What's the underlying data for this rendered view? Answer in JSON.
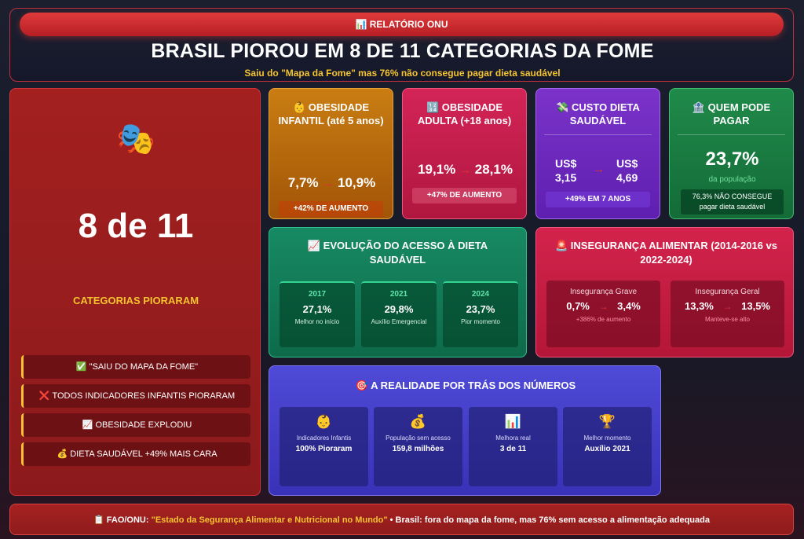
{
  "header": {
    "badge": "📊 RELATÓRIO ONU",
    "title": "BRASIL PIOROU EM 8 DE 11 CATEGORIAS DA FOME",
    "subtitle": "Saiu do \"Mapa da Fome\" mas 76% não consegue pagar dieta saudável"
  },
  "left": {
    "icon": "🎭",
    "stat": "8 de 11",
    "label": "CATEGORIAS PIORARAM",
    "items": [
      "✅ \"SAIU DO MAPA DA FOME\"",
      "❌ TODOS INDICADORES INFANTIS PIORARAM",
      "📈 OBESIDADE EXPLODIU",
      "💰 DIETA SAUDÁVEL +49% MAIS CARA"
    ]
  },
  "cards": {
    "obesidade_infantil": {
      "title": "👶 OBESIDADE INFANTIL (até 5 anos)",
      "from": "7,7%",
      "arrow": "→",
      "to": "10,9%",
      "note": "+42% DE AUMENTO"
    },
    "obesidade_adulta": {
      "title": "🔢 OBESIDADE ADULTA (+18 anos)",
      "from": "19,1%",
      "arrow": "→",
      "to": "28,1%",
      "note": "+47% DE AUMENTO"
    },
    "custo_dieta": {
      "title": "💸 CUSTO DIETA SAUDÁVEL",
      "from_label": "US$",
      "from_value": "3,15",
      "arrow": "→",
      "to_label": "US$",
      "to_value": "4,69",
      "note": "+49% EM 7 ANOS"
    },
    "quem_pode": {
      "title": "🏦 QUEM PODE PAGAR",
      "value": "23,7%",
      "sub": "da população",
      "note_line1": "76,3% NÃO CONSEGUE",
      "note_line2": "pagar dieta saudável"
    }
  },
  "evolucao": {
    "title": "📈 EVOLUÇÃO DO ACESSO À DIETA SAUDÁVEL",
    "items": [
      {
        "year": "2017",
        "value": "27,1%",
        "desc": "Melhor no início"
      },
      {
        "year": "2021",
        "value": "29,8%",
        "desc": "Auxílio Emergencial"
      },
      {
        "year": "2024",
        "value": "23,7%",
        "desc": "Pior momento"
      }
    ]
  },
  "inseguranca": {
    "title": "🚨 INSEGURANÇA ALIMENTAR (2014-2016 vs 2022-2024)",
    "items": [
      {
        "label": "Insegurança Grave",
        "from": "0,7%",
        "arrow": "→",
        "to": "3,4%",
        "note": "+386% de aumento"
      },
      {
        "label": "Insegurança Geral",
        "from": "13,3%",
        "arrow": "→",
        "to": "13,5%",
        "note": "Manteve-se alto"
      }
    ]
  },
  "realidade": {
    "title": "🎯 A REALIDADE POR TRÁS DOS NÚMEROS",
    "items": [
      {
        "icon": "👶",
        "label": "Indicadores Infantis",
        "value": "100% Pioraram"
      },
      {
        "icon": "💰",
        "label": "População sem acesso",
        "value": "159,8 milhões"
      },
      {
        "icon": "📊",
        "label": "Melhora real",
        "value": "3 de 11"
      },
      {
        "icon": "🏆",
        "label": "Melhor momento",
        "value": "Auxílio 2021"
      }
    ]
  },
  "footer": {
    "prefix": "📋 FAO/ONU:",
    "source": "\"Estado da Segurança Alimentar e Nutricional no Mundo\"",
    "suffix": "• Brasil: fora do mapa da fome, mas 76% sem acesso a alimentação adequada"
  }
}
